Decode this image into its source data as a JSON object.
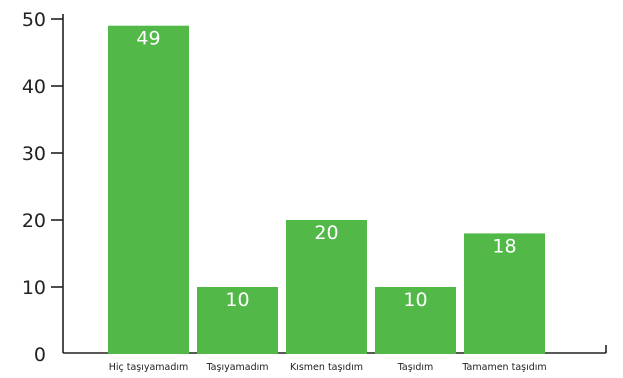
{
  "chart_data": {
    "type": "bar",
    "categories": [
      "Hiç taşıyamadım",
      "Taşıyamadım",
      "Kısmen taşıdım",
      "Taşıdım",
      "Tamamen taşıdım"
    ],
    "values": [
      49,
      10,
      20,
      10,
      18
    ],
    "data_labels": [
      "49",
      "10",
      "20",
      "10",
      "18"
    ],
    "yticks": [
      "0",
      "10",
      "20",
      "30",
      "40",
      "50"
    ],
    "ylim": [
      0,
      50
    ],
    "bar_color": "#52b848",
    "axis_color": "#222222",
    "grid": false,
    "legend": "none"
  }
}
